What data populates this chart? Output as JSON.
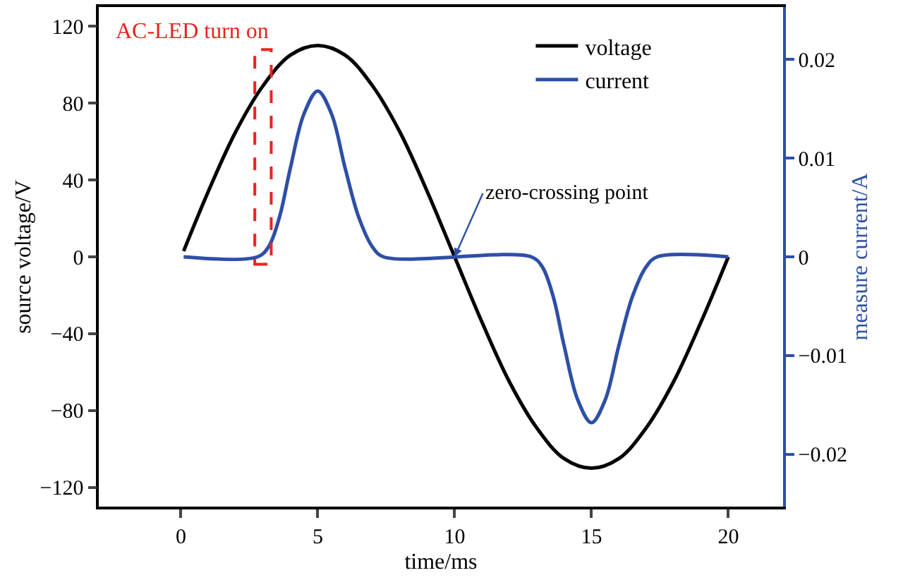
{
  "chart_data": {
    "type": "line",
    "xlabel": "time/ms",
    "ylabel": "source voltage/V",
    "y2label": "measure current/A",
    "xlim": [
      -3,
      22
    ],
    "xticks": [
      0,
      5,
      10,
      15,
      20
    ],
    "ylim": [
      -130,
      130
    ],
    "yticks": [
      -120,
      -80,
      -40,
      0,
      40,
      80,
      120
    ],
    "y2lim": [
      -0.0253,
      0.0253
    ],
    "y2ticks": [
      -0.02,
      -0.01,
      0,
      0.01,
      0.02
    ],
    "legend": "top right",
    "line_style": "solid",
    "marker": "none",
    "series": [
      {
        "name": "voltage",
        "color": "#000000",
        "x": [
          0.1,
          1,
          2,
          3,
          4,
          5,
          6,
          7,
          8,
          9,
          10,
          11,
          12,
          13,
          14,
          15,
          16,
          17,
          18,
          19,
          20
        ],
        "values": [
          3,
          34,
          65,
          89,
          105,
          110,
          105,
          89,
          65,
          34,
          0,
          -34,
          -65,
          -89,
          -105,
          -110,
          -105,
          -89,
          -65,
          -34,
          0
        ]
      },
      {
        "name": "current",
        "color": "#2e4fa6",
        "axis": "y2",
        "x": [
          0.1,
          2.8,
          3.2,
          3.6,
          4,
          4.5,
          5,
          5.5,
          6,
          6.5,
          7,
          7.4,
          12.8,
          13.2,
          13.6,
          14,
          14.5,
          15,
          15.5,
          16,
          16.5,
          17,
          17.4,
          20
        ],
        "values": [
          0,
          0,
          0.001,
          0.004,
          0.009,
          0.0145,
          0.0168,
          0.0145,
          0.009,
          0.004,
          0.001,
          0,
          0,
          -0.001,
          -0.004,
          -0.009,
          -0.0145,
          -0.0168,
          -0.0145,
          -0.009,
          -0.004,
          -0.001,
          0,
          0
        ]
      }
    ],
    "annotations": [
      "AC-LED turn on",
      {
        "text": "zero-crossing point",
        "x": 10,
        "y": 0
      }
    ]
  }
}
